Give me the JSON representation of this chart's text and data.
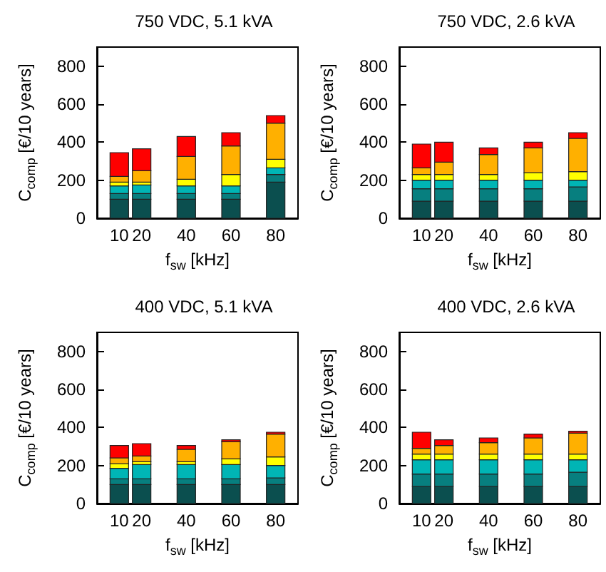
{
  "chart_data": [
    {
      "type": "bar",
      "title": "750 VDC, 5.1 kVA",
      "xlabel": "f$_{sw}$ [kHz]",
      "ylabel": "C$_{comp}$ [€/10 years]",
      "x": [
        10,
        20,
        40,
        60,
        80
      ],
      "xlim": [
        0,
        90
      ],
      "xticks": [
        10,
        20,
        40,
        60,
        80
      ],
      "ylim": [
        0,
        900
      ],
      "yticks": [
        0,
        200,
        400,
        600,
        800
      ],
      "stacked": true,
      "grid": false,
      "series": [
        {
          "color": "#0b4f4f",
          "values": [
            100,
            100,
            100,
            100,
            190
          ]
        },
        {
          "color": "#077f7f",
          "values": [
            30,
            30,
            30,
            30,
            40
          ]
        },
        {
          "color": "#00b5b5",
          "values": [
            40,
            45,
            40,
            40,
            35
          ]
        },
        {
          "color": "#ffff00",
          "values": [
            20,
            15,
            35,
            60,
            45
          ]
        },
        {
          "color": "#ffb000",
          "values": [
            30,
            60,
            120,
            150,
            190
          ]
        },
        {
          "color": "#ff0000",
          "values": [
            125,
            115,
            105,
            70,
            40
          ]
        }
      ]
    },
    {
      "type": "bar",
      "title": "750 VDC, 2.6 kVA",
      "xlabel": "f$_{sw}$ [kHz]",
      "ylabel": "C$_{comp}$ [€/10 years]",
      "x": [
        10,
        20,
        40,
        60,
        80
      ],
      "xlim": [
        0,
        90
      ],
      "xticks": [
        10,
        20,
        40,
        60,
        80
      ],
      "ylim": [
        0,
        900
      ],
      "yticks": [
        0,
        200,
        400,
        600,
        800
      ],
      "stacked": true,
      "grid": false,
      "series": [
        {
          "color": "#0b4f4f",
          "values": [
            90,
            90,
            90,
            90,
            90
          ]
        },
        {
          "color": "#077f7f",
          "values": [
            65,
            65,
            65,
            65,
            75
          ]
        },
        {
          "color": "#00b5b5",
          "values": [
            45,
            45,
            45,
            45,
            35
          ]
        },
        {
          "color": "#ffff00",
          "values": [
            30,
            30,
            30,
            40,
            45
          ]
        },
        {
          "color": "#ffb000",
          "values": [
            35,
            65,
            105,
            130,
            175
          ]
        },
        {
          "color": "#ff0000",
          "values": [
            125,
            105,
            35,
            30,
            30
          ]
        }
      ]
    },
    {
      "type": "bar",
      "title": "400 VDC, 5.1 kVA",
      "xlabel": "f$_{sw}$ [kHz]",
      "ylabel": "C$_{comp}$ [€/10 years]",
      "x": [
        10,
        20,
        40,
        60,
        80
      ],
      "xlim": [
        0,
        90
      ],
      "xticks": [
        10,
        20,
        40,
        60,
        80
      ],
      "ylim": [
        0,
        900
      ],
      "yticks": [
        0,
        200,
        400,
        600,
        800
      ],
      "stacked": true,
      "grid": false,
      "series": [
        {
          "color": "#0b4f4f",
          "values": [
            100,
            100,
            100,
            100,
            100
          ]
        },
        {
          "color": "#077f7f",
          "values": [
            30,
            30,
            30,
            30,
            35
          ]
        },
        {
          "color": "#00b5b5",
          "values": [
            55,
            75,
            75,
            75,
            65
          ]
        },
        {
          "color": "#ffff00",
          "values": [
            25,
            15,
            15,
            30,
            45
          ]
        },
        {
          "color": "#ffb000",
          "values": [
            30,
            30,
            65,
            90,
            120
          ]
        },
        {
          "color": "#ff0000",
          "values": [
            65,
            65,
            20,
            10,
            10
          ]
        }
      ]
    },
    {
      "type": "bar",
      "title": "400 VDC, 2.6 kVA",
      "xlabel": "f$_{sw}$ [kHz]",
      "ylabel": "C$_{comp}$ [€/10 years]",
      "x": [
        10,
        20,
        40,
        60,
        80
      ],
      "xlim": [
        0,
        90
      ],
      "xticks": [
        10,
        20,
        40,
        60,
        80
      ],
      "ylim": [
        0,
        900
      ],
      "yticks": [
        0,
        200,
        400,
        600,
        800
      ],
      "stacked": true,
      "grid": false,
      "series": [
        {
          "color": "#0b4f4f",
          "values": [
            90,
            90,
            90,
            90,
            90
          ]
        },
        {
          "color": "#077f7f",
          "values": [
            65,
            65,
            65,
            65,
            75
          ]
        },
        {
          "color": "#00b5b5",
          "values": [
            75,
            75,
            75,
            75,
            65
          ]
        },
        {
          "color": "#ffff00",
          "values": [
            30,
            30,
            30,
            30,
            30
          ]
        },
        {
          "color": "#ffb000",
          "values": [
            30,
            45,
            60,
            85,
            110
          ]
        },
        {
          "color": "#ff0000",
          "values": [
            85,
            30,
            25,
            20,
            10
          ]
        }
      ]
    }
  ]
}
